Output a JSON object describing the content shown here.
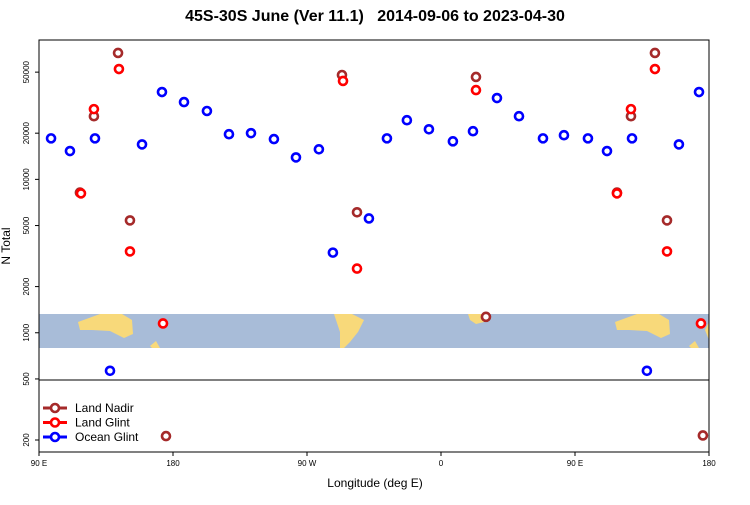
{
  "chart_data": {
    "type": "scatter",
    "title": "45S-30S June (Ver 11.1)   2014-09-06 to 2023-04-30",
    "x_label": "Longitude (deg E)",
    "y_label": "N Total",
    "xlim": [
      90,
      540
    ],
    "xticks": [
      {
        "value": 90,
        "label": "90 E"
      },
      {
        "value": 180,
        "label": "180"
      },
      {
        "value": 270,
        "label": "90 W"
      },
      {
        "value": 360,
        "label": "0"
      },
      {
        "value": 450,
        "label": "90 E"
      },
      {
        "value": 540,
        "label": "180"
      }
    ],
    "ylim": [
      167,
      81000
    ],
    "log_y": true,
    "yticks": [
      200,
      500,
      1000,
      2000,
      5000,
      10000,
      20000,
      50000
    ],
    "legend": "lower left",
    "series": [
      {
        "name": "Land Nadir",
        "color": "#a52a2a",
        "x": [
          117.5,
          126.9,
          143.1,
          151.1,
          175.3,
          293.5,
          303.6,
          383.5,
          390.2,
          478.2,
          487.6,
          503.7,
          511.8,
          535.9
        ],
        "values": [
          8200,
          25800,
          66700,
          5400,
          212,
          47900,
          6100,
          46500,
          1270,
          8200,
          25800,
          66700,
          5400,
          214
        ]
      },
      {
        "name": "Land Glint",
        "color": "#ff0000",
        "x": [
          118.2,
          126.9,
          143.7,
          151.1,
          173.3,
          294.2,
          303.6,
          383.5,
          478.2,
          487.6,
          503.7,
          511.8,
          534.6
        ],
        "values": [
          8100,
          28700,
          52400,
          3390,
          1150,
          43800,
          2620,
          38200,
          8100,
          28700,
          52400,
          3390,
          1150
        ]
      },
      {
        "name": "Ocean Glint",
        "color": "#0000ff",
        "x": [
          98.1,
          110.8,
          127.6,
          137.7,
          159.2,
          172.6,
          187.4,
          202.8,
          217.6,
          232.4,
          247.8,
          262.6,
          278,
          287.4,
          311.6,
          323.7,
          337.1,
          351.9,
          368,
          381.5,
          397.6,
          412.4,
          428.5,
          442.6,
          458.7,
          471.5,
          488.3,
          498.3,
          519.8,
          533.3
        ],
        "values": [
          18500,
          15300,
          18500,
          565,
          16900,
          37100,
          31900,
          27900,
          19700,
          20000,
          18300,
          13900,
          15700,
          3330,
          5560,
          18500,
          24300,
          21200,
          17700,
          20600,
          33900,
          25800,
          18500,
          19400,
          18500,
          15300,
          18500,
          565,
          16900,
          37100
        ]
      }
    ]
  }
}
